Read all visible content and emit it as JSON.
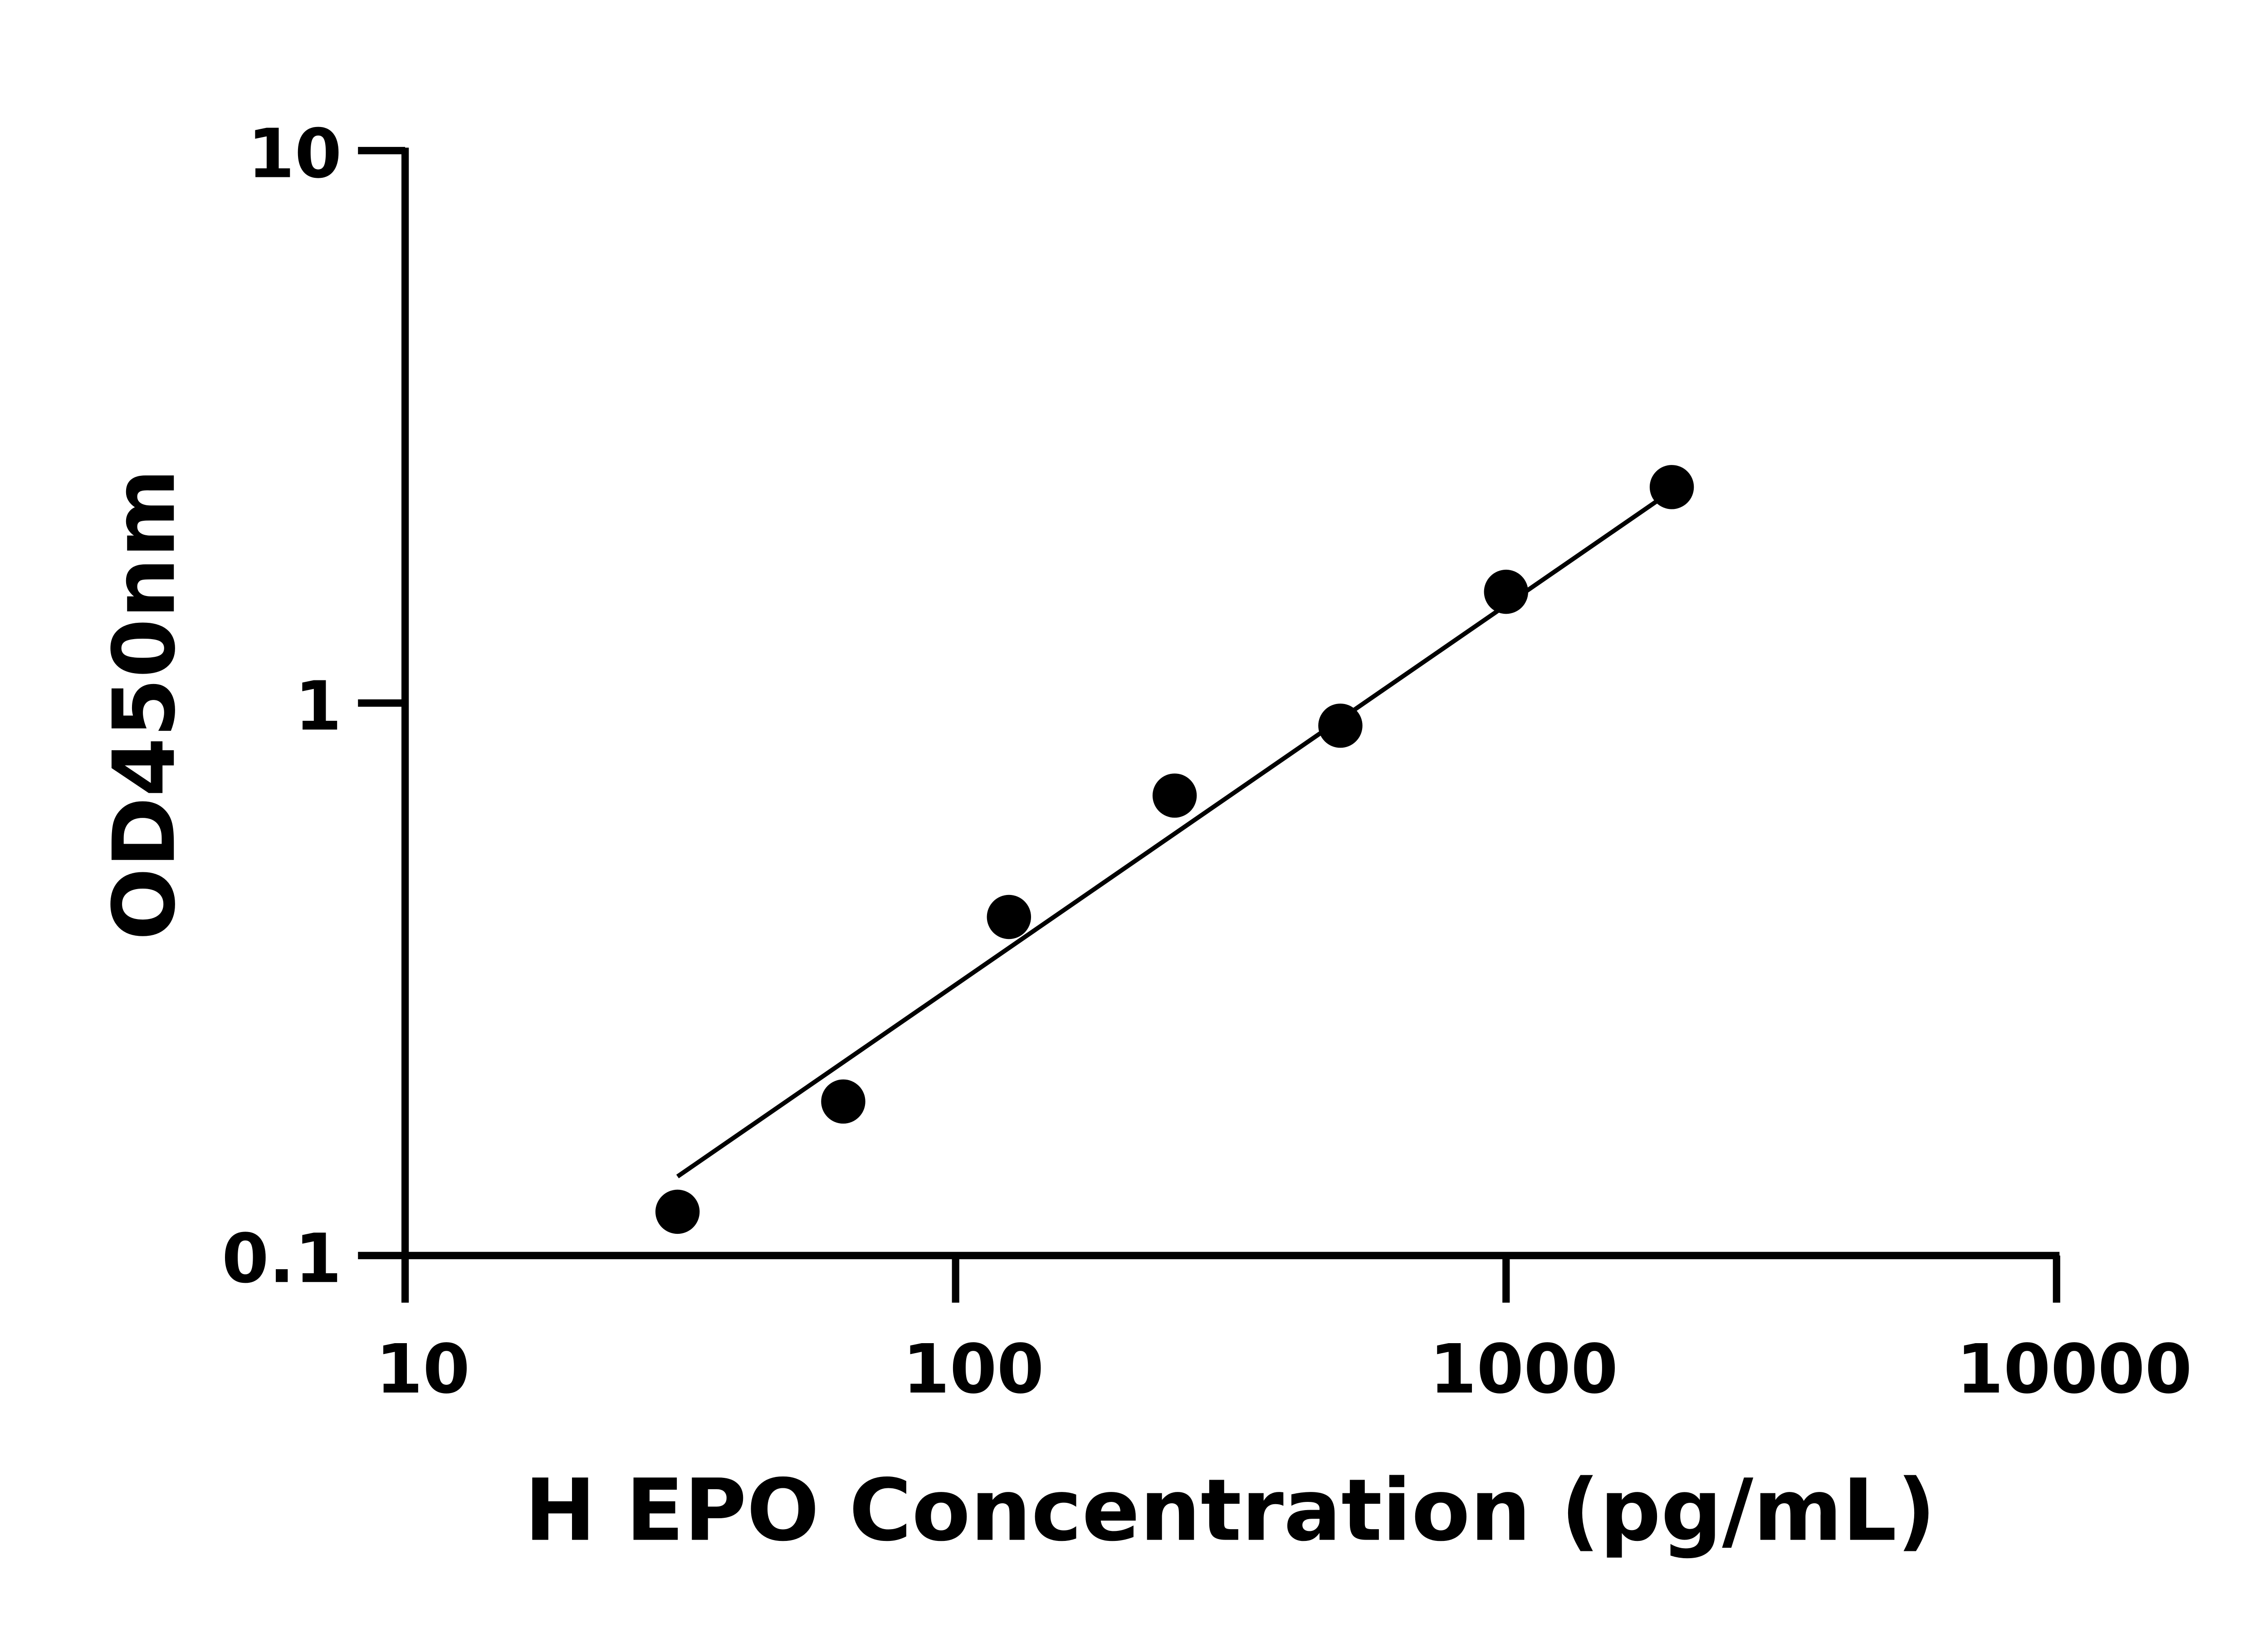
{
  "chart_data": {
    "type": "scatter",
    "title": "",
    "xlabel": "H EPO Concentration (pg/mL)",
    "ylabel": "OD450nm",
    "x_scale": "log",
    "y_scale": "log",
    "xlim": [
      10,
      10000
    ],
    "ylim": [
      0.1,
      10
    ],
    "x_ticks": [
      "10",
      "100",
      "1000",
      "10000"
    ],
    "y_ticks": [
      "0.1",
      "1",
      "10"
    ],
    "grid": false,
    "series": [
      {
        "x": [
          31.25,
          62.5,
          125,
          250,
          500,
          1000,
          2000
        ],
        "y": [
          0.12,
          0.19,
          0.41,
          0.68,
          0.91,
          1.59,
          2.46
        ],
        "marker": "circle",
        "color": "#000000"
      }
    ],
    "fit_line": {
      "x": [
        31.25,
        1950
      ],
      "y": [
        0.139,
        2.38
      ],
      "color": "#000000"
    }
  }
}
